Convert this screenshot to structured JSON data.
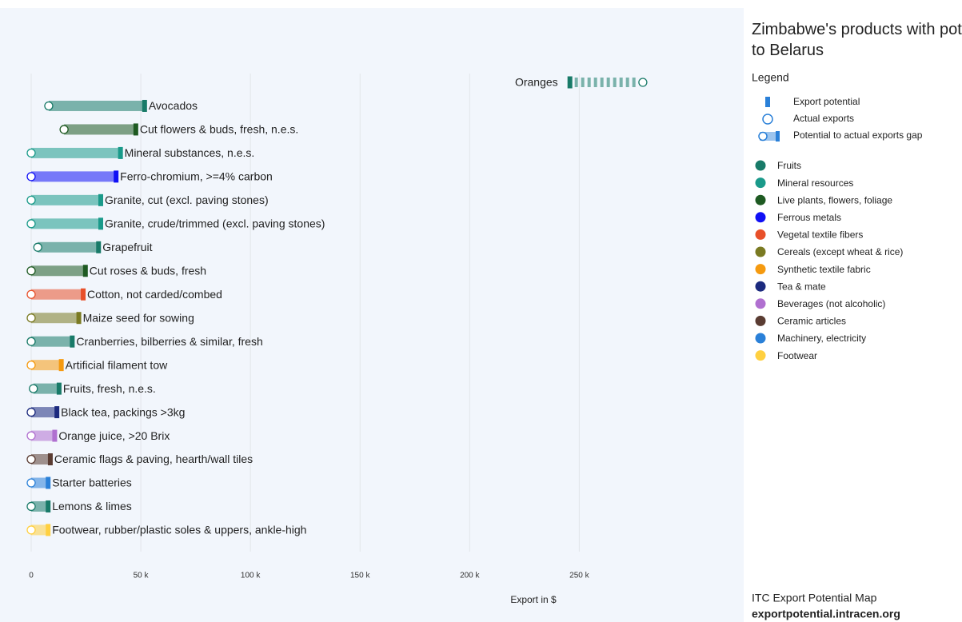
{
  "chart_data": {
    "type": "dumbbell",
    "title": "Zimbabwe's products with potential to Belarus",
    "legend_title": "Legend",
    "legend_items": [
      "Export potential",
      "Actual exports",
      "Potential to actual exports gap"
    ],
    "x_label": "Export in $",
    "xlim": [
      0,
      325000
    ],
    "xticks": [
      0,
      {
        "value": 50000,
        "label": "50 k"
      },
      {
        "value": 100000,
        "label": "100 k"
      },
      {
        "value": 150000,
        "label": "150 k"
      },
      {
        "value": 200000,
        "label": "200 k"
      },
      {
        "value": 250000,
        "label": "250 k"
      }
    ],
    "grid": true,
    "sectors": [
      {
        "name": "Fruits",
        "color": "#187a68"
      },
      {
        "name": "Mineral resources",
        "color": "#1a9a8a"
      },
      {
        "name": "Live plants, flowers, foliage",
        "color": "#1e5a22"
      },
      {
        "name": "Ferrous metals",
        "color": "#1010f5"
      },
      {
        "name": "Vegetal textile fibers",
        "color": "#e8502a"
      },
      {
        "name": "Cereals (except wheat & rice)",
        "color": "#7a7a22"
      },
      {
        "name": "Synthetic textile fabric",
        "color": "#f59a10"
      },
      {
        "name": "Tea & mate",
        "color": "#1c2a7e"
      },
      {
        "name": "Beverages (not alcoholic)",
        "color": "#b070d0"
      },
      {
        "name": "Ceramic articles",
        "color": "#5a3c32"
      },
      {
        "name": "Machinery, electricity",
        "color": "#2a80d8"
      },
      {
        "name": "Footwear",
        "color": "#ffd040"
      }
    ],
    "products": [
      {
        "name": "Oranges",
        "color": "#187a68",
        "potential": 245000,
        "actual": 279000
      },
      {
        "name": "Avocados",
        "color": "#187a68",
        "potential": 51000,
        "actual": 8000
      },
      {
        "name": "Cut flowers & buds, fresh, n.e.s.",
        "color": "#1e5a22",
        "potential": 47000,
        "actual": 15000
      },
      {
        "name": "Mineral substances, n.e.s.",
        "color": "#1a9a8a",
        "potential": 40000,
        "actual": 0
      },
      {
        "name": "Ferro-chromium, >=4% carbon",
        "color": "#1010f5",
        "potential": 38000,
        "actual": 0
      },
      {
        "name": "Granite, cut (excl. paving stones)",
        "color": "#1a9a8a",
        "potential": 31000,
        "actual": 0
      },
      {
        "name": "Granite, crude/trimmed (excl. paving stones)",
        "color": "#1a9a8a",
        "potential": 31000,
        "actual": 0
      },
      {
        "name": "Grapefruit",
        "color": "#187a68",
        "potential": 30000,
        "actual": 3000
      },
      {
        "name": "Cut roses & buds, fresh",
        "color": "#1e5a22",
        "potential": 24000,
        "actual": 0
      },
      {
        "name": "Cotton, not carded/combed",
        "color": "#e8502a",
        "potential": 23000,
        "actual": 0
      },
      {
        "name": "Maize seed for sowing",
        "color": "#7a7a22",
        "potential": 21000,
        "actual": 0
      },
      {
        "name": "Cranberries, bilberries & similar, fresh",
        "color": "#187a68",
        "potential": 18000,
        "actual": 0
      },
      {
        "name": "Artificial filament tow",
        "color": "#f59a10",
        "potential": 13000,
        "actual": 0
      },
      {
        "name": "Fruits, fresh, n.e.s.",
        "color": "#187a68",
        "potential": 12000,
        "actual": 1000
      },
      {
        "name": "Black tea, packings >3kg",
        "color": "#1c2a7e",
        "potential": 11000,
        "actual": 0
      },
      {
        "name": "Orange juice, >20 Brix",
        "color": "#b070d0",
        "potential": 10000,
        "actual": 0
      },
      {
        "name": "Ceramic flags & paving, hearth/wall tiles",
        "color": "#5a3c32",
        "potential": 8000,
        "actual": 0
      },
      {
        "name": "Starter batteries",
        "color": "#2a80d8",
        "potential": 7000,
        "actual": 0
      },
      {
        "name": "Lemons & limes",
        "color": "#187a68",
        "potential": 7000,
        "actual": 0
      },
      {
        "name": "Footwear, rubber/plastic soles & uppers, ankle-high",
        "color": "#ffd040",
        "potential": 7000,
        "actual": 0
      }
    ],
    "source": "ITC Export Potential Map",
    "source_url": "exportpotential.intracen.org"
  }
}
